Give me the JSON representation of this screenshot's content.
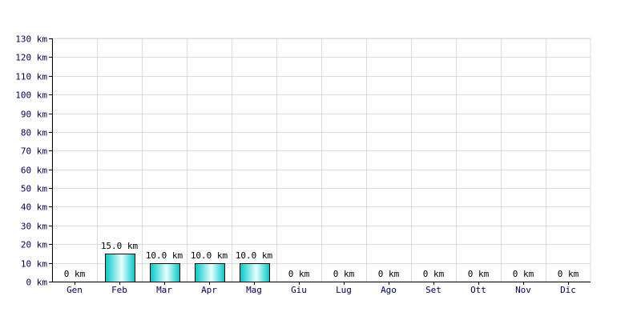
{
  "chart_data": {
    "type": "bar",
    "title": "",
    "xlabel": "",
    "ylabel": "",
    "categories": [
      "Gen",
      "Feb",
      "Mar",
      "Apr",
      "Mag",
      "Giu",
      "Lug",
      "Ago",
      "Set",
      "Ott",
      "Nov",
      "Dic"
    ],
    "values": [
      0,
      15,
      10,
      10,
      10,
      0,
      0,
      0,
      0,
      0,
      0,
      0
    ],
    "data_labels": [
      "0 km",
      "15.0 km",
      "10.0 km",
      "10.0 km",
      "10.0 km",
      "0 km",
      "0 km",
      "0 km",
      "0 km",
      "0 km",
      "0 km",
      "0 km"
    ],
    "y_ticks": [
      0,
      10,
      20,
      30,
      40,
      50,
      60,
      70,
      80,
      90,
      100,
      110,
      120,
      130
    ],
    "y_tick_labels": [
      "0 km",
      "10 km",
      "20 km",
      "30 km",
      "40 km",
      "50 km",
      "60 km",
      "70 km",
      "80 km",
      "90 km",
      "100 km",
      "110 km",
      "120 km",
      "130 km"
    ],
    "ylim": [
      0,
      130
    ],
    "grid": true,
    "bar_color": "#00c8c8",
    "bar_highlight_color": "#e6ffff"
  }
}
